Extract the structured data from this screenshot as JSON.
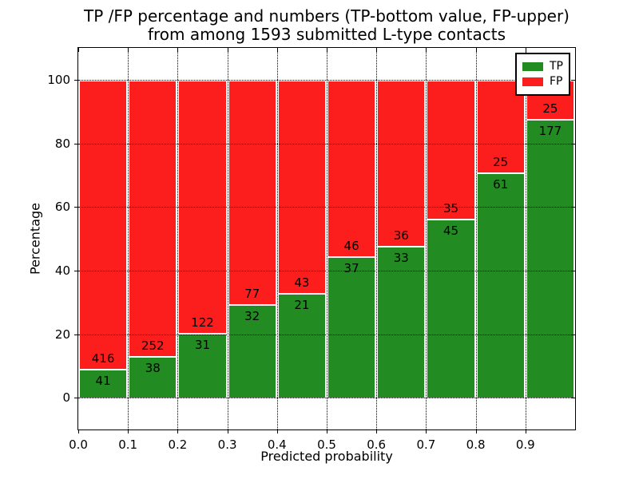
{
  "title": {
    "line1": "TP /FP percentage and numbers (TP-bottom value, FP-upper)",
    "line2": "from among 1593 submitted L-type contacts"
  },
  "chart_data": {
    "type": "bar",
    "subtype": "stacked-100-percent",
    "title": "TP /FP percentage and numbers (TP-bottom value, FP-upper) from among 1593 submitted L-type contacts",
    "xlabel": "Predicted probability",
    "ylabel": "Percentage",
    "categories": [
      "0.0",
      "0.1",
      "0.2",
      "0.3",
      "0.4",
      "0.5",
      "0.6",
      "0.7",
      "0.8",
      "0.9"
    ],
    "series": [
      {
        "name": "TP",
        "color": "#228b22",
        "counts": [
          41,
          38,
          31,
          32,
          21,
          37,
          33,
          45,
          61,
          177
        ]
      },
      {
        "name": "FP",
        "color": "#fc1d1d",
        "counts": [
          416,
          252,
          122,
          77,
          43,
          46,
          36,
          35,
          25,
          25
        ]
      }
    ],
    "total_contacts": 1593,
    "bar_width": 0.1,
    "bar_edge_color": "#ffffff",
    "xlim": [
      0.0,
      1.0
    ],
    "ylim": [
      -10,
      110
    ],
    "xticks": [
      0.0,
      0.1,
      0.2,
      0.3,
      0.4,
      0.5,
      0.6,
      0.7,
      0.8,
      0.9
    ],
    "yticks": [
      0,
      20,
      40,
      60,
      80,
      100
    ],
    "grid": "dotted-black",
    "legend": {
      "position": "upper-right",
      "entries": [
        {
          "label": "TP",
          "color": "#228b22"
        },
        {
          "label": "FP",
          "color": "#fc1d1d"
        }
      ]
    }
  }
}
